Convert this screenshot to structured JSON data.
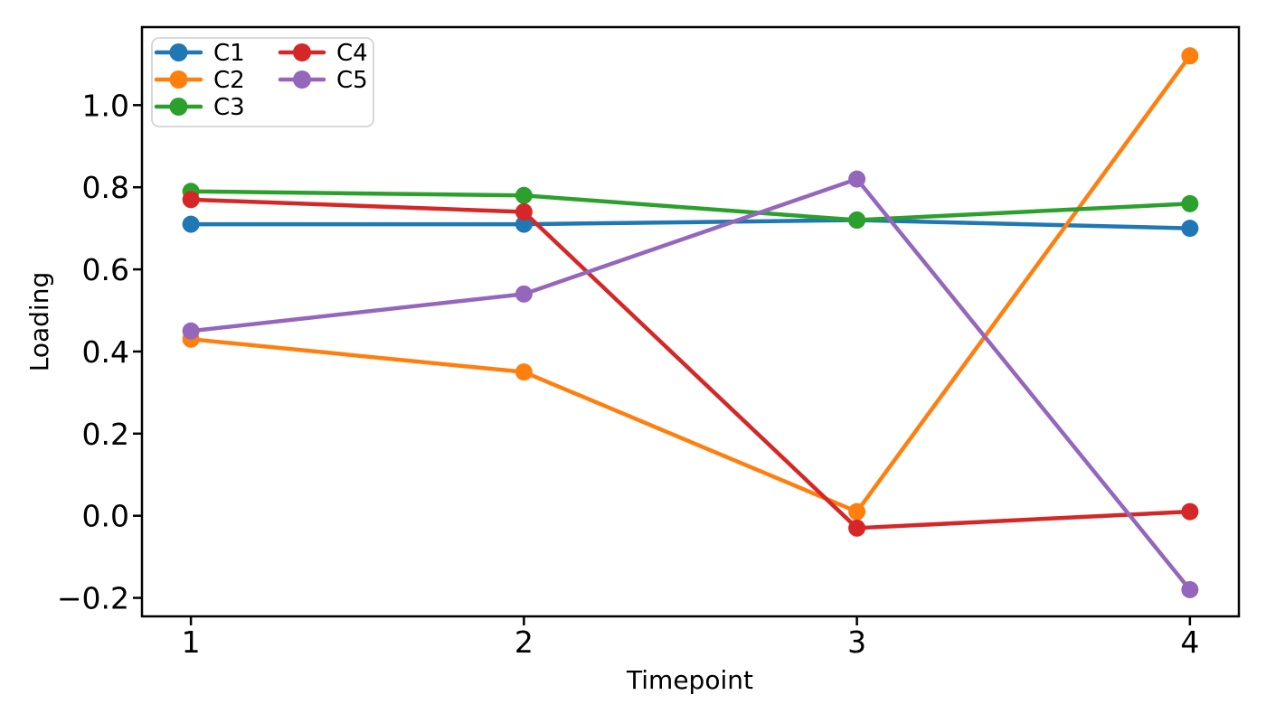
{
  "chart_data": {
    "type": "line",
    "title": "",
    "xlabel": "Timepoint",
    "ylabel": "Loading",
    "x": [
      1,
      2,
      3,
      4
    ],
    "series": [
      {
        "name": "C1",
        "color": "#1f77b4",
        "values": [
          0.71,
          0.71,
          0.72,
          0.7
        ]
      },
      {
        "name": "C2",
        "color": "#ff7f0e",
        "values": [
          0.43,
          0.35,
          0.01,
          1.12
        ]
      },
      {
        "name": "C3",
        "color": "#2ca02c",
        "values": [
          0.79,
          0.78,
          0.72,
          0.76
        ]
      },
      {
        "name": "C4",
        "color": "#d62728",
        "values": [
          0.77,
          0.74,
          -0.03,
          0.01
        ]
      },
      {
        "name": "C5",
        "color": "#9467bd",
        "values": [
          0.45,
          0.54,
          0.82,
          -0.18
        ]
      }
    ],
    "xticks": [
      1,
      2,
      3,
      4
    ],
    "yticks": [
      -0.2,
      0.0,
      0.2,
      0.4,
      0.6,
      0.8,
      1.0
    ],
    "xlim": [
      0.853,
      4.147
    ],
    "ylim": [
      -0.245,
      1.19
    ],
    "grid": false,
    "legend": {
      "position": "upper-left",
      "columns": 2,
      "labels": [
        "C1",
        "C2",
        "C3",
        "C4",
        "C5"
      ]
    },
    "axis_color": "#000000",
    "legend_border_color": "#d4d4d4",
    "marker": "circle"
  }
}
